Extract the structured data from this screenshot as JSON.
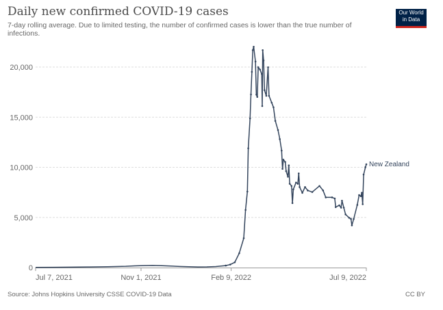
{
  "header": {
    "title": "Daily new confirmed COVID-19 cases",
    "subtitle": "7-day rolling average. Due to limited testing, the number of confirmed cases is lower than the true number of infections.",
    "logo_line1": "Our World",
    "logo_line2": "in Data"
  },
  "footer": {
    "source": "Source: Johns Hopkins University CSSE COVID-19 Data",
    "license": "CC BY"
  },
  "colors": {
    "line": "#33445c",
    "grid": "#dddddd",
    "logo_bg": "#002147",
    "logo_accent": "#ce261e"
  },
  "chart_data": {
    "type": "line",
    "title": "Daily new confirmed COVID-19 cases",
    "xlabel": "",
    "ylabel": "",
    "x_unit": "days since Jul 7, 2021",
    "xlim": [
      0,
      367
    ],
    "ylim": [
      0,
      20000
    ],
    "y_ticks": [
      {
        "v": 0,
        "label": "0"
      },
      {
        "v": 5000,
        "label": "5,000"
      },
      {
        "v": 10000,
        "label": "10,000"
      },
      {
        "v": 15000,
        "label": "15,000"
      },
      {
        "v": 20000,
        "label": "20,000"
      }
    ],
    "x_ticks": [
      {
        "v": 0,
        "label": "Jul 7, 2021"
      },
      {
        "v": 117,
        "label": "Nov 1, 2021"
      },
      {
        "v": 217,
        "label": "Feb 9, 2022"
      },
      {
        "v": 367,
        "label": "Jul 9, 2022"
      }
    ],
    "grid": true,
    "series": [
      {
        "name": "New Zealand",
        "points": [
          [
            0,
            20
          ],
          [
            20,
            30
          ],
          [
            40,
            40
          ],
          [
            60,
            60
          ],
          [
            80,
            90
          ],
          [
            100,
            130
          ],
          [
            110,
            170
          ],
          [
            120,
            200
          ],
          [
            130,
            210
          ],
          [
            140,
            190
          ],
          [
            150,
            150
          ],
          [
            160,
            110
          ],
          [
            170,
            80
          ],
          [
            180,
            60
          ],
          [
            190,
            70
          ],
          [
            200,
            100
          ],
          [
            205,
            140
          ],
          [
            211,
            200
          ],
          [
            216,
            300
          ],
          [
            221,
            525
          ],
          [
            226,
            1430
          ],
          [
            231,
            2930
          ],
          [
            233,
            5750
          ],
          [
            235,
            7580
          ],
          [
            236,
            11900
          ],
          [
            238,
            14880
          ],
          [
            239,
            17270
          ],
          [
            240,
            19520
          ],
          [
            241,
            21690
          ],
          [
            242,
            22030
          ],
          [
            244,
            20550
          ],
          [
            245,
            17250
          ],
          [
            246,
            17020
          ],
          [
            247,
            19980
          ],
          [
            249,
            19750
          ],
          [
            251,
            19300
          ],
          [
            251.5,
            16110
          ],
          [
            252,
            21690
          ],
          [
            253,
            20660
          ],
          [
            254,
            17700
          ],
          [
            256,
            17130
          ],
          [
            258,
            19980
          ],
          [
            259,
            17130
          ],
          [
            262,
            16450
          ],
          [
            264,
            15990
          ],
          [
            266,
            14630
          ],
          [
            269,
            13720
          ],
          [
            271,
            12810
          ],
          [
            273,
            11670
          ],
          [
            274,
            9850
          ],
          [
            275,
            10760
          ],
          [
            277,
            10530
          ],
          [
            278,
            9620
          ],
          [
            280,
            9060
          ],
          [
            281,
            10190
          ],
          [
            282,
            8360
          ],
          [
            284,
            8140
          ],
          [
            285,
            6430
          ],
          [
            286,
            7800
          ],
          [
            289,
            8480
          ],
          [
            291,
            8360
          ],
          [
            292,
            9390
          ],
          [
            293,
            8030
          ],
          [
            296,
            7460
          ],
          [
            299,
            8030
          ],
          [
            302,
            7690
          ],
          [
            307,
            7530
          ],
          [
            315,
            8140
          ],
          [
            319,
            7690
          ],
          [
            322,
            7000
          ],
          [
            329,
            7000
          ],
          [
            332,
            6890
          ],
          [
            333,
            6030
          ],
          [
            337,
            6210
          ],
          [
            339,
            5980
          ],
          [
            340,
            6670
          ],
          [
            342,
            5980
          ],
          [
            344,
            5300
          ],
          [
            348,
            4960
          ],
          [
            350,
            4850
          ],
          [
            351,
            4210
          ],
          [
            353,
            4850
          ],
          [
            357,
            6250
          ],
          [
            359,
            7230
          ],
          [
            361,
            7120
          ],
          [
            362,
            7460
          ],
          [
            363,
            6320
          ],
          [
            364,
            9280
          ],
          [
            366,
            10010
          ],
          [
            367,
            10300
          ]
        ]
      }
    ],
    "legend": "end-of-line label"
  }
}
